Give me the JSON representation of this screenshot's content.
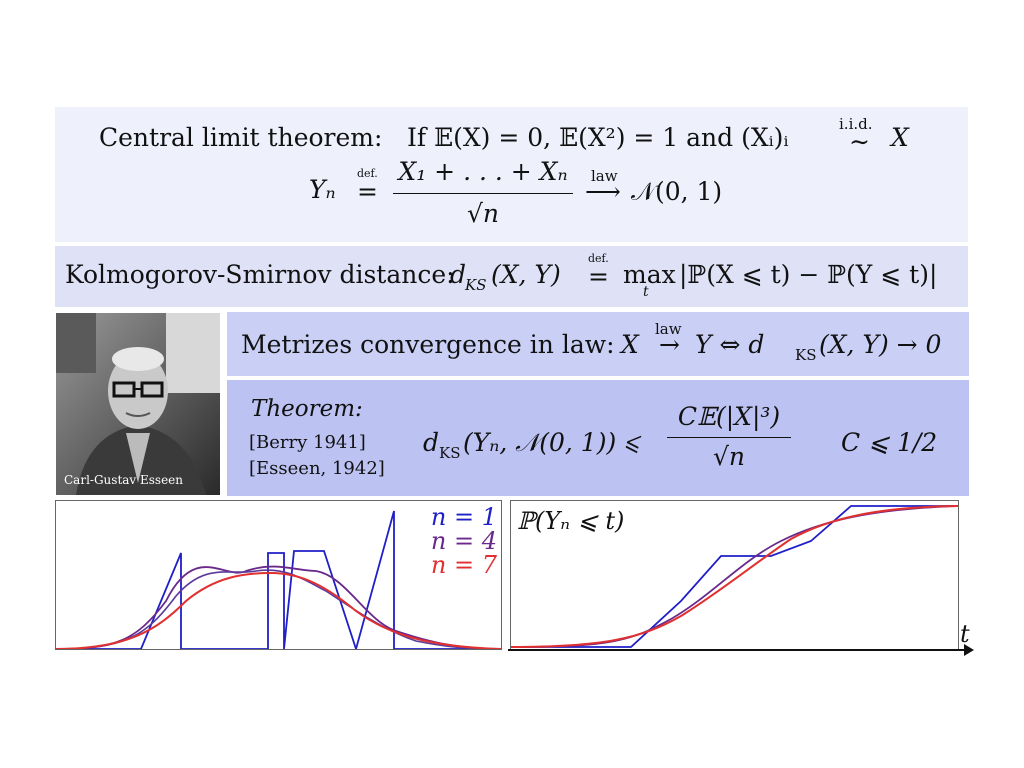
{
  "clt": {
    "title": "Central limit theorem:",
    "line1": "If 𝔼(X) = 0, 𝔼(X²) = 1 and (Xᵢ)ᵢ",
    "iid": "i.i.d.",
    "tilde": "∼",
    "x": "X",
    "yn": "Yₙ",
    "def": "def.",
    "eq": "=",
    "num": "X₁ + . . . + Xₙ",
    "den": "√n",
    "law": "law",
    "arrow": "⟶",
    "limit": "𝒩(0, 1)"
  },
  "ks": {
    "label": "Kolmogorov-Smirnov distance:",
    "lhs": "d",
    "lhs_sub": "KS",
    "lhs_args": "(X, Y)",
    "def": "def.",
    "eq": "=",
    "max": "max",
    "max_sub": "t",
    "rhs": "|ℙ(X ⩽ t) − ℙ(Y ⩽ t)|"
  },
  "metrizes": {
    "label": "Metrizes convergence in law:",
    "x": "X",
    "law": "law",
    "arrow": "→",
    "rest": "Y ⇔ d",
    "sub": "KS",
    "tail": "(X, Y) → 0"
  },
  "theorem": {
    "title": "Theorem:",
    "ref1": "[Berry 1941]",
    "ref2": "[Esseen, 1942]",
    "lhs": "d",
    "lhs_sub": "KS",
    "lhs_args": "(Yₙ, 𝒩(0, 1)) ⩽",
    "num": "C𝔼(|X|³)",
    "den": "√n",
    "constant": "C ⩽ 1/2"
  },
  "photo": {
    "caption": "Carl-Gustav Esseen"
  },
  "legend": {
    "n1": "n = 1",
    "n4": "n = 4",
    "n7": "n = 7",
    "color_n1": "#1f1fc8",
    "color_n4": "#6a2a8c",
    "color_n7": "#e03030"
  },
  "cdf": {
    "label": "ℙ(Yₙ ⩽ t)",
    "axis": "t"
  }
}
